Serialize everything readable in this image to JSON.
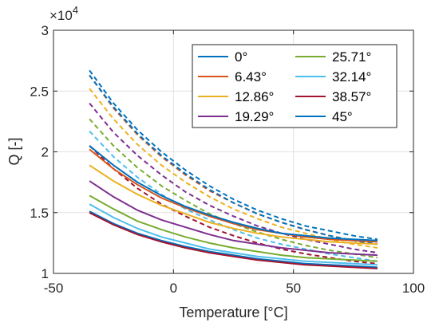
{
  "chart_data": {
    "type": "line",
    "xlabel": "Temperature [°C]",
    "ylabel": "Q [-]",
    "xlim": [
      -50,
      100
    ],
    "ylim": [
      1,
      3
    ],
    "y_exponent_label": "×10",
    "y_exponent_power": "4",
    "x_ticks": [
      -50,
      0,
      50,
      100
    ],
    "y_ticks": [
      1,
      1.5,
      2,
      2.5,
      3
    ],
    "x_tick_labels": [
      "-50",
      "0",
      "50",
      "100"
    ],
    "y_tick_labels": [
      "1",
      "1.5",
      "2",
      "2.5",
      "3"
    ],
    "grid": true,
    "legend_position": "top-right",
    "legend_columns": 2,
    "x": [
      -35,
      -25,
      -15,
      -5,
      5,
      15,
      25,
      35,
      45,
      55,
      65,
      75,
      85
    ],
    "series_solid": [
      {
        "name": "0°",
        "color": "#0072BD",
        "values": [
          1.51,
          1.41,
          1.33,
          1.27,
          1.22,
          1.18,
          1.15,
          1.12,
          1.1,
          1.08,
          1.07,
          1.06,
          1.05
        ]
      },
      {
        "name": "6.43°",
        "color": "#D95319",
        "values": [
          2.02,
          1.86,
          1.73,
          1.62,
          1.54,
          1.47,
          1.41,
          1.36,
          1.33,
          1.3,
          1.28,
          1.27,
          1.26
        ]
      },
      {
        "name": "12.86°",
        "color": "#EDB120",
        "values": [
          1.89,
          1.76,
          1.65,
          1.56,
          1.49,
          1.42,
          1.37,
          1.33,
          1.3,
          1.28,
          1.26,
          1.25,
          1.24
        ]
      },
      {
        "name": "19.29°",
        "color": "#7E2F8E",
        "values": [
          1.76,
          1.63,
          1.52,
          1.44,
          1.38,
          1.32,
          1.27,
          1.24,
          1.21,
          1.19,
          1.17,
          1.16,
          1.15
        ]
      },
      {
        "name": "25.71°",
        "color": "#77AC30",
        "values": [
          1.64,
          1.53,
          1.43,
          1.36,
          1.3,
          1.25,
          1.21,
          1.18,
          1.15,
          1.13,
          1.12,
          1.11,
          1.1
        ]
      },
      {
        "name": "32.14°",
        "color": "#4DBEEE",
        "values": [
          1.57,
          1.46,
          1.37,
          1.3,
          1.25,
          1.2,
          1.17,
          1.14,
          1.12,
          1.1,
          1.09,
          1.08,
          1.07
        ]
      },
      {
        "name": "38.57°",
        "color": "#A2142F",
        "values": [
          1.5,
          1.4,
          1.32,
          1.26,
          1.21,
          1.17,
          1.14,
          1.11,
          1.09,
          1.07,
          1.06,
          1.05,
          1.04
        ]
      },
      {
        "name": "45°",
        "color": "#0072BD",
        "values": [
          2.05,
          1.89,
          1.75,
          1.64,
          1.55,
          1.48,
          1.42,
          1.37,
          1.33,
          1.31,
          1.29,
          1.28,
          1.27
        ]
      }
    ],
    "series_dashed": [
      {
        "color": "#0072BD",
        "values": [
          2.67,
          2.4,
          2.18,
          2.0,
          1.85,
          1.72,
          1.61,
          1.52,
          1.45,
          1.39,
          1.35,
          1.31,
          1.28
        ]
      },
      {
        "color": "#D95319",
        "values": [
          2.63,
          2.36,
          2.14,
          1.96,
          1.81,
          1.68,
          1.58,
          1.49,
          1.42,
          1.36,
          1.31,
          1.27,
          1.24
        ]
      },
      {
        "color": "#EDB120",
        "values": [
          2.52,
          2.27,
          2.06,
          1.89,
          1.75,
          1.63,
          1.53,
          1.45,
          1.38,
          1.33,
          1.28,
          1.24,
          1.21
        ]
      },
      {
        "color": "#7E2F8E",
        "values": [
          2.4,
          2.16,
          1.97,
          1.81,
          1.67,
          1.56,
          1.47,
          1.39,
          1.33,
          1.28,
          1.24,
          1.2,
          1.17
        ]
      },
      {
        "color": "#77AC30",
        "values": [
          2.27,
          2.05,
          1.87,
          1.72,
          1.6,
          1.49,
          1.41,
          1.34,
          1.28,
          1.23,
          1.19,
          1.16,
          1.13
        ]
      },
      {
        "color": "#4DBEEE",
        "values": [
          2.17,
          1.96,
          1.79,
          1.65,
          1.53,
          1.44,
          1.36,
          1.29,
          1.24,
          1.2,
          1.16,
          1.13,
          1.1
        ]
      },
      {
        "color": "#A2142F",
        "values": [
          2.05,
          1.86,
          1.7,
          1.57,
          1.47,
          1.38,
          1.31,
          1.25,
          1.2,
          1.16,
          1.13,
          1.1,
          1.08
        ]
      },
      {
        "color": "#0072BD",
        "values": [
          2.63,
          2.37,
          2.15,
          1.97,
          1.82,
          1.69,
          1.58,
          1.49,
          1.42,
          1.36,
          1.31,
          1.27,
          1.24
        ]
      }
    ]
  }
}
